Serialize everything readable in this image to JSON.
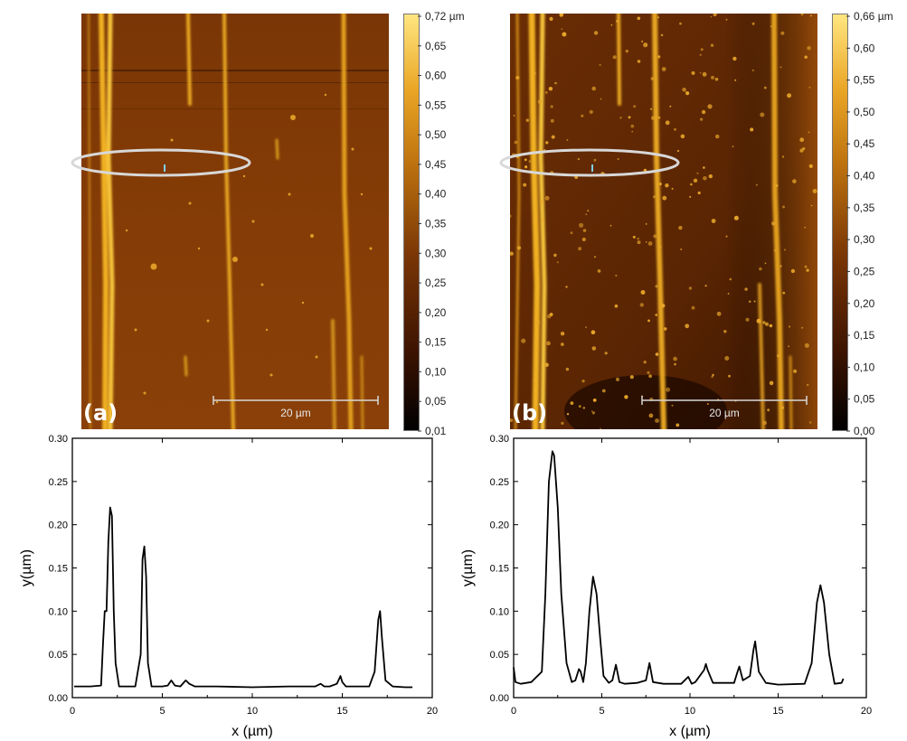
{
  "colors": {
    "afm_low": "#1a0800",
    "afm_mid": "#7a3a05",
    "afm_high": "#ffe680",
    "line": "#000000",
    "ellipse": "#d8d8d8"
  },
  "panels": [
    {
      "label": "(a)",
      "scale_bar": "20 µm",
      "colorbar_ticks": [
        "0,72 µm",
        "0,65",
        "0,60",
        "0,55",
        "0,50",
        "0,45",
        "0,40",
        "0,35",
        "0,30",
        "0,25",
        "0,20",
        "0,15",
        "0,10",
        "0,05",
        "0,01"
      ]
    },
    {
      "label": "(b)",
      "scale_bar": "20 µm",
      "colorbar_ticks": [
        "0,66 µm",
        "0,60",
        "0,55",
        "0,50",
        "0,45",
        "0,40",
        "0,35",
        "0,30",
        "0,25",
        "0,20",
        "0,15",
        "0,10",
        "0,05",
        "0,00"
      ]
    }
  ],
  "chart_data": [
    {
      "type": "line",
      "xlabel": "x (µm)",
      "ylabel": "y(µm)",
      "xlim": [
        0,
        20
      ],
      "ylim": [
        0,
        0.3
      ],
      "x_ticks": [
        "0",
        "5",
        "10",
        "15",
        "20"
      ],
      "y_ticks": [
        "0.00",
        "0.05",
        "0.10",
        "0.15",
        "0.20",
        "0.25",
        "0.30"
      ],
      "series": [
        {
          "x": [
            0.1,
            1.0,
            1.6,
            1.7,
            1.8,
            1.9,
            2.0,
            2.1,
            2.2,
            2.3,
            2.4,
            2.6,
            3.5,
            3.8,
            3.9,
            4.0,
            4.1,
            4.2,
            4.4,
            5.0,
            5.3,
            5.5,
            5.7,
            6.0,
            6.3,
            6.5,
            6.8,
            8.0,
            10.0,
            12.0,
            13.5,
            13.8,
            14.0,
            14.3,
            14.7,
            14.9,
            15.0,
            15.2,
            16.5,
            16.8,
            17.0,
            17.1,
            17.2,
            17.4,
            17.8,
            18.5,
            18.9
          ],
          "y": [
            0.013,
            0.013,
            0.014,
            0.06,
            0.1,
            0.1,
            0.18,
            0.22,
            0.21,
            0.1,
            0.04,
            0.013,
            0.013,
            0.05,
            0.16,
            0.175,
            0.14,
            0.04,
            0.013,
            0.013,
            0.014,
            0.02,
            0.014,
            0.013,
            0.02,
            0.016,
            0.013,
            0.013,
            0.012,
            0.013,
            0.013,
            0.016,
            0.013,
            0.013,
            0.016,
            0.025,
            0.018,
            0.013,
            0.013,
            0.03,
            0.09,
            0.1,
            0.07,
            0.02,
            0.013,
            0.012,
            0.012
          ]
        }
      ]
    },
    {
      "type": "line",
      "xlabel": "x (µm)",
      "ylabel": "y(µm)",
      "xlim": [
        0,
        20
      ],
      "ylim": [
        0,
        0.3
      ],
      "x_ticks": [
        "0",
        "5",
        "10",
        "15",
        "20"
      ],
      "y_ticks": [
        "0.00",
        "0.05",
        "0.10",
        "0.15",
        "0.20",
        "0.25",
        "0.30"
      ],
      "series": [
        {
          "x": [
            0.0,
            0.1,
            0.4,
            1.0,
            1.6,
            1.8,
            2.0,
            2.2,
            2.3,
            2.5,
            2.7,
            3.0,
            3.3,
            3.5,
            3.7,
            3.8,
            3.95,
            4.1,
            4.3,
            4.5,
            4.7,
            4.9,
            5.1,
            5.4,
            5.6,
            5.8,
            6.0,
            6.3,
            7.0,
            7.5,
            7.7,
            7.9,
            8.5,
            9.5,
            9.9,
            10.1,
            10.3,
            10.8,
            10.9,
            11.0,
            11.3,
            12.5,
            12.7,
            12.8,
            13.0,
            13.4,
            13.6,
            13.7,
            13.9,
            14.3,
            15.0,
            16.5,
            16.9,
            17.2,
            17.4,
            17.6,
            17.9,
            18.2,
            18.6,
            18.7
          ],
          "y": [
            0.035,
            0.018,
            0.016,
            0.018,
            0.03,
            0.12,
            0.25,
            0.285,
            0.28,
            0.22,
            0.12,
            0.04,
            0.018,
            0.02,
            0.033,
            0.03,
            0.018,
            0.04,
            0.1,
            0.14,
            0.12,
            0.07,
            0.025,
            0.017,
            0.02,
            0.038,
            0.018,
            0.016,
            0.017,
            0.02,
            0.04,
            0.018,
            0.016,
            0.016,
            0.024,
            0.016,
            0.018,
            0.032,
            0.039,
            0.032,
            0.017,
            0.017,
            0.03,
            0.036,
            0.02,
            0.025,
            0.055,
            0.065,
            0.03,
            0.017,
            0.015,
            0.016,
            0.04,
            0.11,
            0.13,
            0.11,
            0.05,
            0.016,
            0.017,
            0.022
          ]
        }
      ]
    }
  ]
}
